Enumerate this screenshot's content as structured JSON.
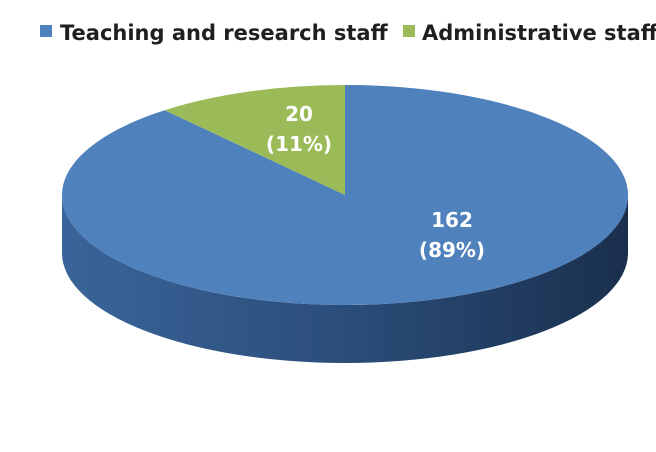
{
  "chart_data": {
    "type": "pie",
    "title": "",
    "categories": [
      "Teaching and research staff",
      "Administrative staff"
    ],
    "values": [
      162,
      20
    ],
    "percent_labels": [
      "(89%)",
      "(11%)"
    ],
    "value_labels": [
      "162",
      "20"
    ],
    "colors": [
      "#4f81bd",
      "#9bbb59"
    ],
    "legend": {
      "placement": "top",
      "entries": [
        "Teaching and research staff",
        "Administrative staff"
      ]
    },
    "style": "3d"
  }
}
